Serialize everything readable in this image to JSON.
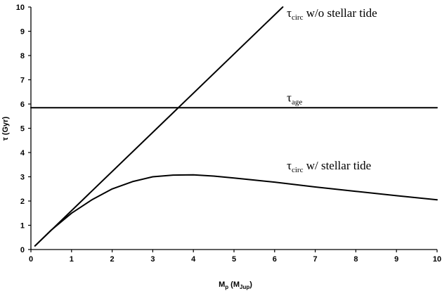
{
  "chart_data": {
    "type": "line",
    "xlabel": {
      "main": "M",
      "sub1": "p",
      "mid": " (M",
      "sub2": "Jup",
      "end": ")"
    },
    "ylabel": "τ (Gyr)",
    "xlim": [
      0,
      10
    ],
    "ylim": [
      0,
      10
    ],
    "xticks": [
      "0",
      "1",
      "2",
      "3",
      "4",
      "5",
      "6",
      "7",
      "8",
      "9",
      "10"
    ],
    "yticks": [
      "0",
      "1",
      "2",
      "3",
      "4",
      "5",
      "6",
      "7",
      "8",
      "9",
      "10"
    ],
    "grid": false,
    "series": [
      {
        "key": "without_stellar_tide",
        "points": [
          [
            0.1,
            0.15
          ],
          [
            6.2,
            10.0
          ]
        ]
      },
      {
        "key": "with_stellar_tide",
        "points": [
          [
            0.1,
            0.15
          ],
          [
            0.5,
            0.8
          ],
          [
            1.0,
            1.5
          ],
          [
            1.5,
            2.05
          ],
          [
            2.0,
            2.5
          ],
          [
            2.5,
            2.8
          ],
          [
            3.0,
            3.0
          ],
          [
            3.5,
            3.07
          ],
          [
            4.0,
            3.08
          ],
          [
            4.5,
            3.03
          ],
          [
            5.0,
            2.95
          ],
          [
            6.0,
            2.78
          ],
          [
            7.0,
            2.58
          ],
          [
            8.0,
            2.4
          ],
          [
            9.0,
            2.22
          ],
          [
            10.0,
            2.05
          ]
        ]
      },
      {
        "key": "age",
        "points": [
          [
            0,
            5.85
          ],
          [
            10,
            5.85
          ]
        ]
      }
    ],
    "annotations": [
      {
        "key": "wo",
        "symbol": "τ",
        "sub": "circ",
        "text": " w/o stellar tide",
        "x": 6.3,
        "y": 9.6
      },
      {
        "key": "age",
        "symbol": "τ",
        "sub": "age",
        "text": "",
        "x": 6.3,
        "y": 6.1
      },
      {
        "key": "w",
        "symbol": "τ",
        "sub": "circ",
        "text": " w/ stellar tide",
        "x": 6.3,
        "y": 3.3
      }
    ]
  }
}
